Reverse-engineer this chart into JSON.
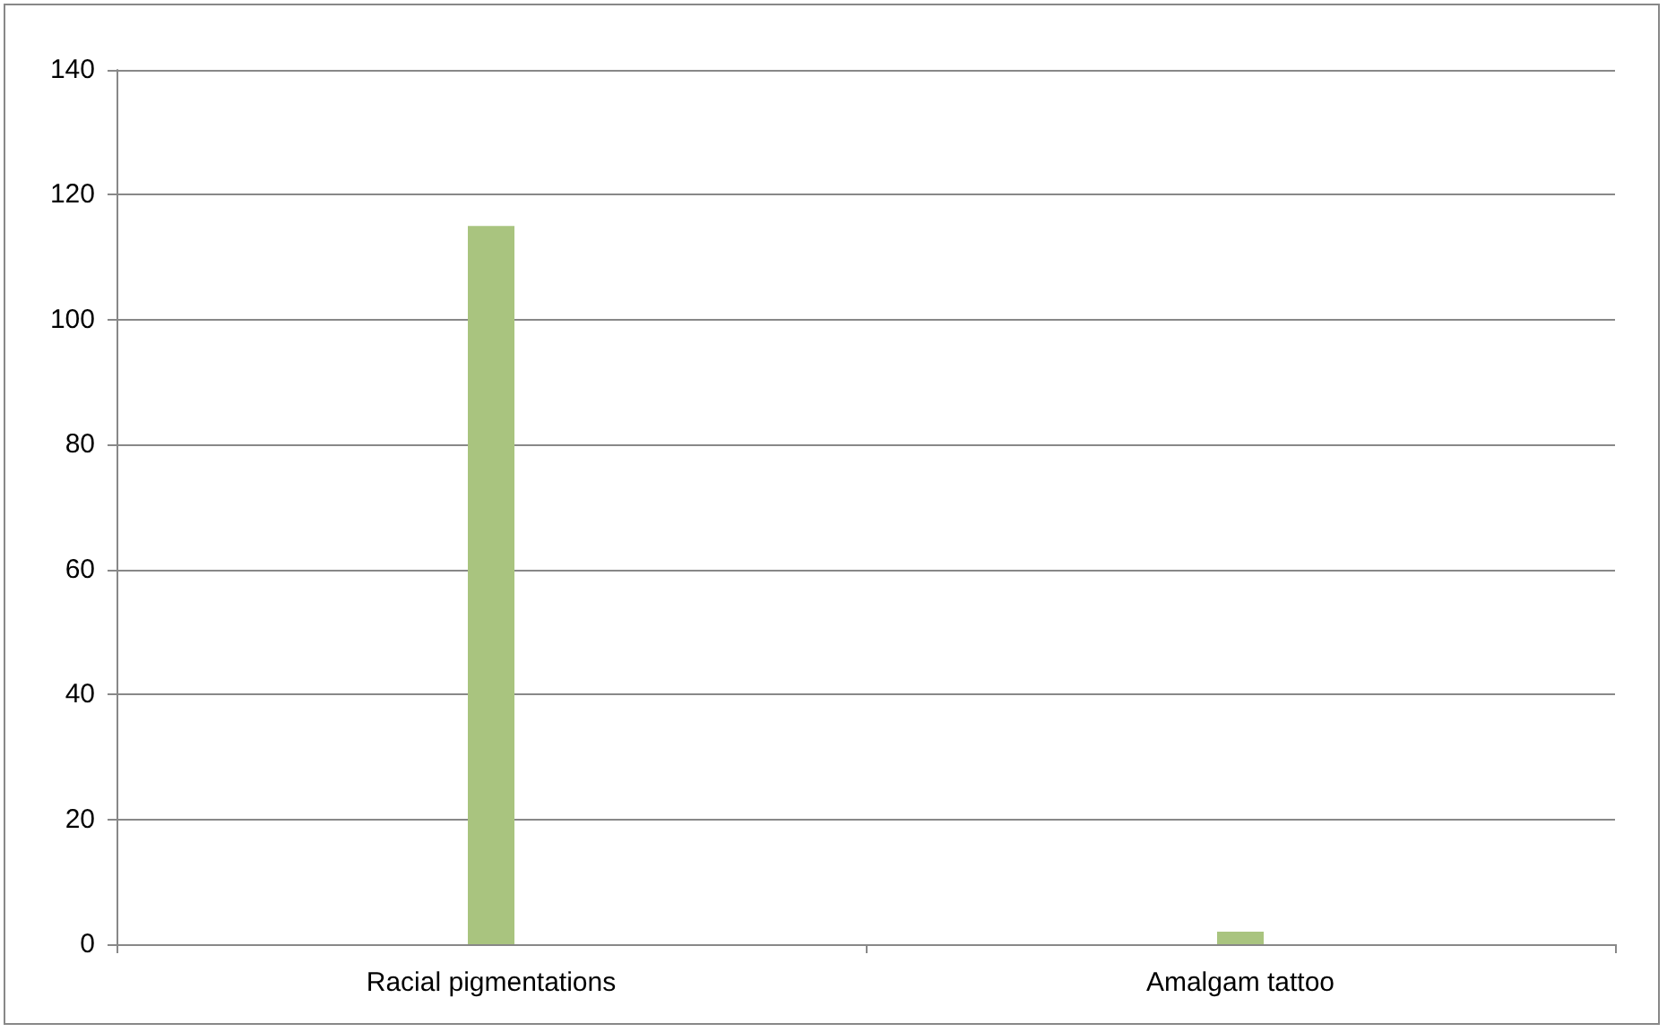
{
  "chart_data": {
    "type": "bar",
    "categories": [
      "Racial pigmentations",
      "Amalgam tattoo"
    ],
    "values": [
      115,
      2
    ],
    "color": "#a9c47f",
    "ylim": [
      0,
      140
    ],
    "yticks": [
      0,
      20,
      40,
      60,
      80,
      100,
      120,
      140
    ],
    "grid": "y"
  }
}
